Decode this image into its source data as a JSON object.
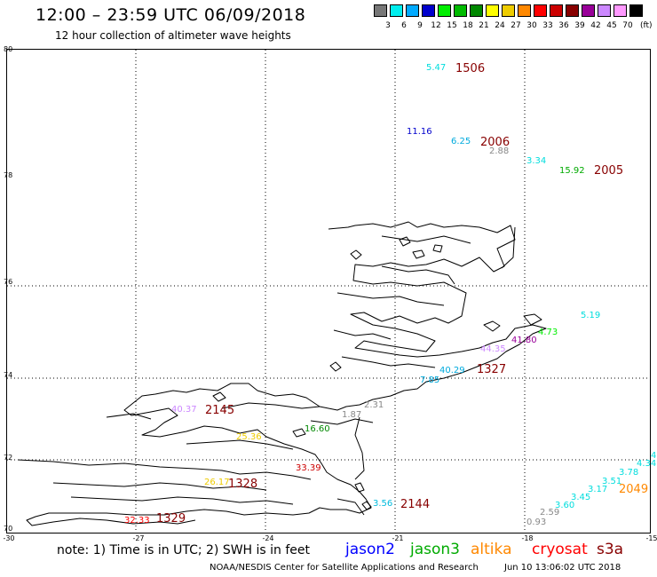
{
  "header": {
    "title": "12:00 – 23:59 UTC 06/09/2018",
    "subtitle": "12 hour collection of altimeter wave heights"
  },
  "legend": {
    "unit": "(ft)",
    "steps": [
      {
        "label": "3",
        "color": "#777777"
      },
      {
        "label": "6",
        "color": "#00eeee"
      },
      {
        "label": "9",
        "color": "#00aaff"
      },
      {
        "label": "12",
        "color": "#0000cc"
      },
      {
        "label": "15",
        "color": "#00ee00"
      },
      {
        "label": "18",
        "color": "#00bb00"
      },
      {
        "label": "21",
        "color": "#008800"
      },
      {
        "label": "24",
        "color": "#ffff00"
      },
      {
        "label": "27",
        "color": "#eecc00"
      },
      {
        "label": "30",
        "color": "#ff8800"
      },
      {
        "label": "33",
        "color": "#ff0000"
      },
      {
        "label": "36",
        "color": "#cc0000"
      },
      {
        "label": "39",
        "color": "#880000"
      },
      {
        "label": "42",
        "color": "#990099"
      },
      {
        "label": "45",
        "color": "#cc88ff"
      },
      {
        "label": "70",
        "color": "#ff99ff"
      },
      {
        "label": "",
        "color": "#000000"
      }
    ]
  },
  "axes": {
    "lat_labels": [
      "80",
      "78",
      "76",
      "74",
      "72",
      "70"
    ],
    "lon_labels": [
      "-30",
      "-27",
      "-24",
      "-21",
      "-18",
      "-15"
    ]
  },
  "observations": [
    {
      "value": "5.47",
      "color": "#00dddd"
    },
    {
      "value": "11.16",
      "color": "#0000cc"
    },
    {
      "value": "6.25",
      "color": "#00aadd"
    },
    {
      "value": "2.88",
      "color": "#888888"
    },
    {
      "value": "3.34",
      "color": "#00dddd"
    },
    {
      "value": "15.92",
      "color": "#00aa00"
    },
    {
      "value": "5.19",
      "color": "#00dddd"
    },
    {
      "value": "4.73",
      "color": "#00ee00"
    },
    {
      "value": "41.80",
      "color": "#990099"
    },
    {
      "value": "44.35",
      "color": "#cc88ff"
    },
    {
      "value": "40.29",
      "color": "#00aadd"
    },
    {
      "value": "7.85",
      "color": "#00aadd"
    },
    {
      "value": "40.37",
      "color": "#cc88ff"
    },
    {
      "value": "1.87",
      "color": "#888888"
    },
    {
      "value": "2.31",
      "color": "#888888"
    },
    {
      "value": "16.60",
      "color": "#008800"
    },
    {
      "value": "25.36",
      "color": "#eecc00"
    },
    {
      "value": "33.39",
      "color": "#cc0000"
    },
    {
      "value": "26.17",
      "color": "#eecc00"
    },
    {
      "value": "3.56",
      "color": "#00bbdd"
    },
    {
      "value": "32.33",
      "color": "#ff0000"
    },
    {
      "value": "4",
      "color": "#00dddd"
    },
    {
      "value": "4.34",
      "color": "#00dddd"
    },
    {
      "value": "3.78",
      "color": "#00dddd"
    },
    {
      "value": "3.51",
      "color": "#00dddd"
    },
    {
      "value": "3.17",
      "color": "#00dddd"
    },
    {
      "value": "3.45",
      "color": "#00dddd"
    },
    {
      "value": "3.60",
      "color": "#00dddd"
    },
    {
      "value": "2.59",
      "color": "#888888"
    },
    {
      "value": "0.93",
      "color": "#888888"
    }
  ],
  "pass_times": [
    {
      "value": "1506",
      "color": "#880000"
    },
    {
      "value": "2006",
      "color": "#880000"
    },
    {
      "value": "2005",
      "color": "#880000"
    },
    {
      "value": "1327",
      "color": "#880000"
    },
    {
      "value": "2145",
      "color": "#880000"
    },
    {
      "value": "1328",
      "color": "#880000"
    },
    {
      "value": "2144",
      "color": "#880000"
    },
    {
      "value": "1329",
      "color": "#880000"
    },
    {
      "value": "2049",
      "color": "#ff8800"
    }
  ],
  "footer": {
    "note": "note: 1) Time is in UTC; 2) SWH is in feet",
    "satellites": [
      {
        "name": "jason2",
        "color": "#0000ff"
      },
      {
        "name": "jason3",
        "color": "#00aa00"
      },
      {
        "name": "altika",
        "color": "#ff8800"
      },
      {
        "name": "cryosat",
        "color": "#ff0000"
      },
      {
        "name": "s3a",
        "color": "#880000"
      }
    ],
    "credit": "NOAA/NESDIS Center for Satellite Applications and Research",
    "timestamp": "Jun 10 13:06:02 UTC 2018"
  }
}
